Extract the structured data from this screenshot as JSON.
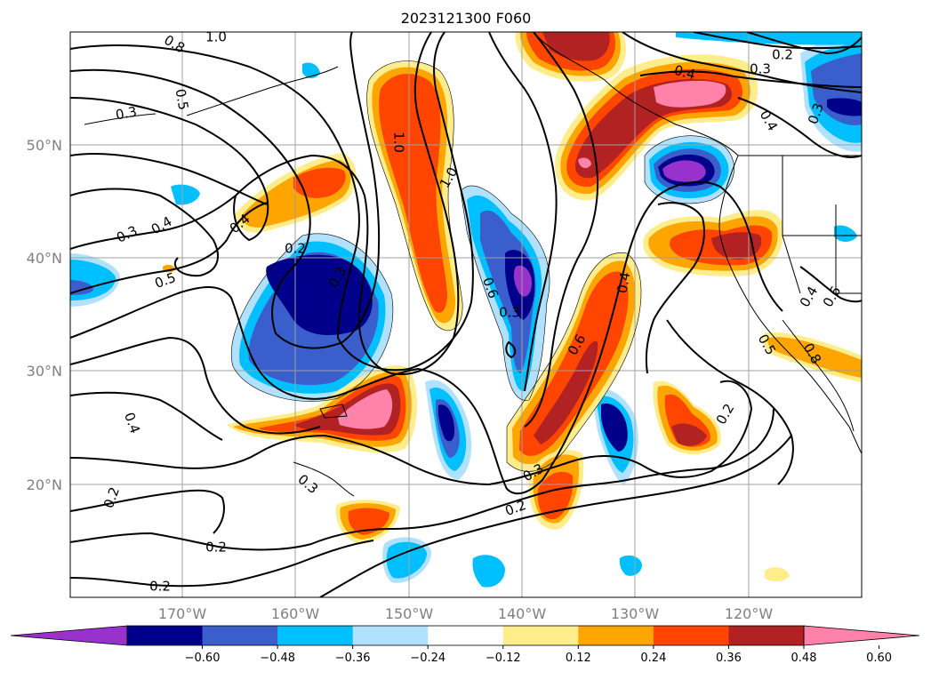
{
  "title": "2023121300 F060",
  "map": {
    "lat_labels": [
      "50°N",
      "40°N",
      "30°N",
      "20°N"
    ],
    "lon_labels": [
      "170°W",
      "160°W",
      "150°W",
      "140°W",
      "130°W",
      "120°W"
    ]
  },
  "contour_labels": [
    "1.0",
    "0.8",
    "0.5",
    "0.3",
    "0.3",
    "0.4",
    "0.5",
    "0.4",
    "0.2",
    "0.3",
    "1.0",
    "1.0",
    "0.6",
    "0.3",
    "0.4",
    "0.4",
    "0.3",
    "0.2",
    "0.4",
    "0.6",
    "0.6",
    "0.4",
    "0.5",
    "0.8",
    "0.2",
    "0.4",
    "0.2",
    "0.3",
    "0.3",
    "0.2",
    "0.2",
    "0.3",
    "0.2"
  ],
  "colorbar": {
    "colors": [
      "#9932CC",
      "#00008B",
      "#3A5FCD",
      "#00BFFF",
      "#B0E2FF",
      "#FFFFFF",
      "#FFEC8B",
      "#FFA500",
      "#FF4500",
      "#B22222",
      "#FF82AB"
    ],
    "tick_labels": [
      "−0.60",
      "−0.48",
      "−0.36",
      "−0.24",
      "−0.12",
      "0.12",
      "0.24",
      "0.36",
      "0.48",
      "0.60"
    ]
  }
}
